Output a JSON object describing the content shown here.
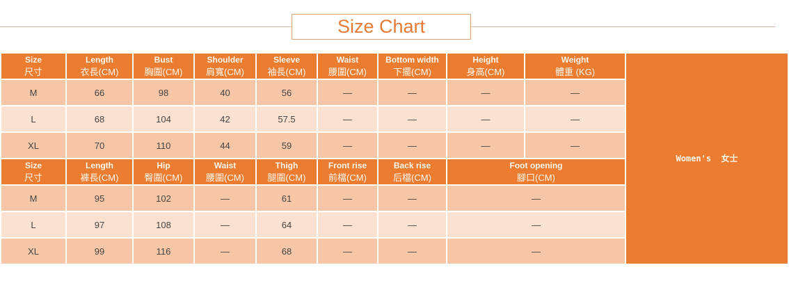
{
  "title": "Size Chart",
  "side_label": "Women's  女士",
  "tops": {
    "headers": [
      [
        "Size",
        "尺寸"
      ],
      [
        "Length",
        "衣長(CM)"
      ],
      [
        "Bust",
        "胸圍(CM)"
      ],
      [
        "Shoulder",
        "肩寬(CM)"
      ],
      [
        "Sleeve",
        "袖長(CM)"
      ],
      [
        "Waist",
        "腰圍(CM)"
      ],
      [
        "Bottom width",
        "下擺(CM)"
      ],
      [
        "Height",
        "身高(CM)"
      ],
      [
        "Weight",
        "體重 (KG)"
      ]
    ],
    "rows": [
      [
        "M",
        "66",
        "98",
        "40",
        "56",
        "—",
        "—",
        "—",
        "—"
      ],
      [
        "L",
        "68",
        "104",
        "42",
        "57.5",
        "—",
        "—",
        "—",
        "—"
      ],
      [
        "XL",
        "70",
        "110",
        "44",
        "59",
        "—",
        "—",
        "—",
        "—"
      ]
    ]
  },
  "pants": {
    "headers": [
      [
        "Size",
        "尺寸"
      ],
      [
        "Length",
        "褲長(CM)"
      ],
      [
        "Hip",
        "臀圍(CM)"
      ],
      [
        "Waist",
        "腰圍(CM)"
      ],
      [
        "Thigh",
        "腿圍(CM)"
      ],
      [
        "Front rise",
        "前檔(CM)"
      ],
      [
        "Back rise",
        "后檔(CM)"
      ],
      [
        "Foot opening",
        "腳口(CM)"
      ]
    ],
    "rows": [
      [
        "M",
        "95",
        "102",
        "—",
        "61",
        "—",
        "—",
        "—"
      ],
      [
        "L",
        "97",
        "108",
        "—",
        "64",
        "—",
        "—",
        "—"
      ],
      [
        "XL",
        "99",
        "116",
        "—",
        "68",
        "—",
        "—",
        "—"
      ]
    ]
  }
}
